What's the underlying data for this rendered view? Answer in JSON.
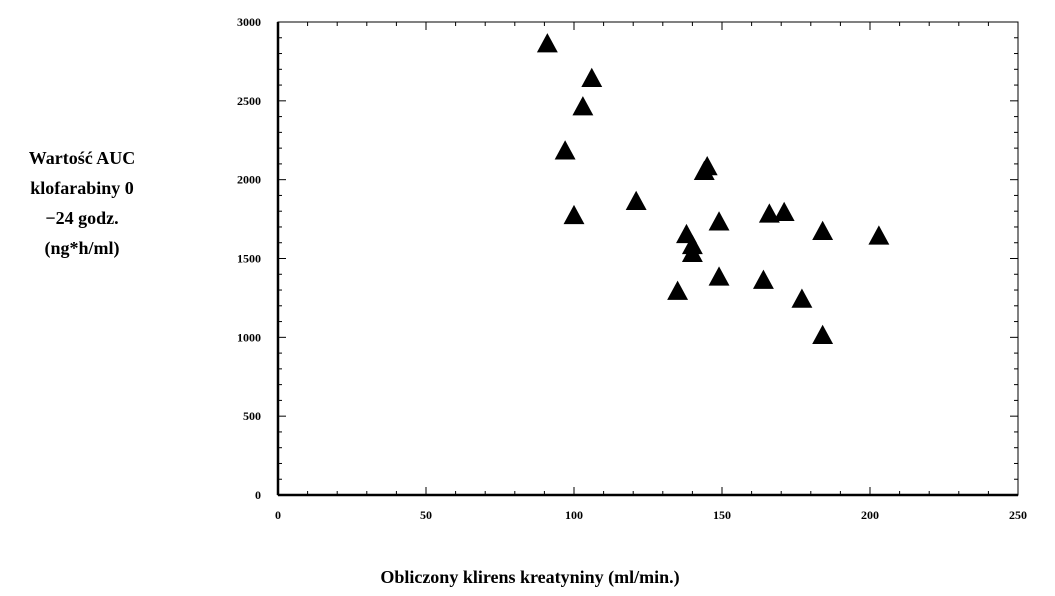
{
  "chart_data": {
    "type": "scatter",
    "title": "",
    "xlabel": "Obliczony klirens kreatyniny (ml/min.)",
    "ylabel_lines": [
      "Wartość AUC",
      "klofarabiny 0",
      "−24 godz.",
      "(ng*h/ml)"
    ],
    "xlim": [
      0,
      250
    ],
    "ylim": [
      0,
      3000
    ],
    "xticks": [
      0,
      50,
      100,
      150,
      200,
      250
    ],
    "yticks": [
      0,
      500,
      1000,
      1500,
      2000,
      2500,
      3000
    ],
    "grid": false,
    "marker": "triangle",
    "color": "#000000",
    "points": [
      {
        "x": 91,
        "y": 2860
      },
      {
        "x": 106,
        "y": 2640
      },
      {
        "x": 103,
        "y": 2460
      },
      {
        "x": 97,
        "y": 2180
      },
      {
        "x": 100,
        "y": 1770
      },
      {
        "x": 121,
        "y": 1860
      },
      {
        "x": 145,
        "y": 2080
      },
      {
        "x": 144,
        "y": 2050
      },
      {
        "x": 149,
        "y": 1730
      },
      {
        "x": 138,
        "y": 1650
      },
      {
        "x": 140,
        "y": 1580
      },
      {
        "x": 140,
        "y": 1530
      },
      {
        "x": 135,
        "y": 1290
      },
      {
        "x": 149,
        "y": 1380
      },
      {
        "x": 164,
        "y": 1360
      },
      {
        "x": 166,
        "y": 1780
      },
      {
        "x": 171,
        "y": 1790
      },
      {
        "x": 184,
        "y": 1670
      },
      {
        "x": 177,
        "y": 1240
      },
      {
        "x": 184,
        "y": 1010
      },
      {
        "x": 203,
        "y": 1640
      }
    ]
  }
}
